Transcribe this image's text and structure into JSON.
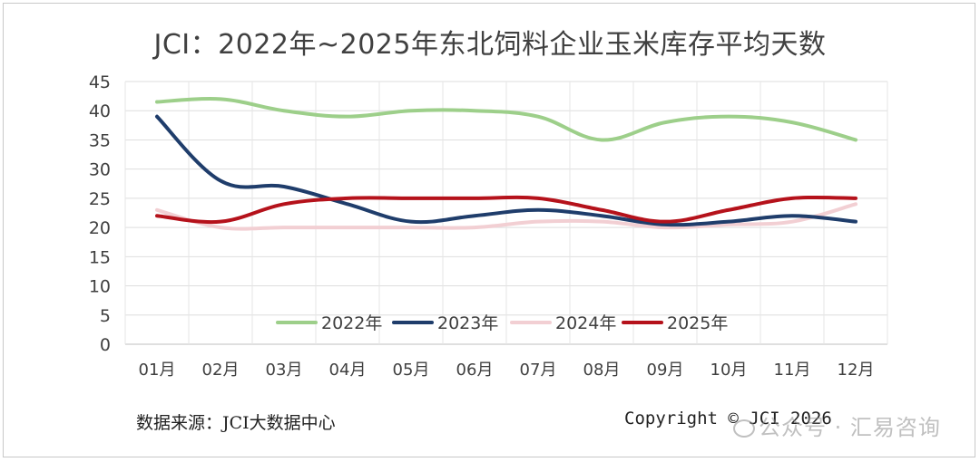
{
  "chart_data": {
    "type": "line",
    "title": "JCI：2022年~2025年东北饲料企业玉米库存平均天数",
    "categories": [
      "01月",
      "02月",
      "03月",
      "04月",
      "05月",
      "06月",
      "07月",
      "08月",
      "09月",
      "10月",
      "11月",
      "12月"
    ],
    "ylim": [
      0,
      45
    ],
    "yticks": [
      0,
      5,
      10,
      15,
      20,
      25,
      30,
      35,
      40,
      45
    ],
    "grid": true,
    "legend_position": "bottom-inside",
    "series": [
      {
        "name": "2022年",
        "color": "#9dcf8a",
        "values": [
          41.5,
          42,
          40,
          39,
          40,
          40,
          39,
          35,
          38,
          39,
          38,
          35
        ]
      },
      {
        "name": "2023年",
        "color": "#1f3d6b",
        "values": [
          39,
          28,
          27,
          24,
          21,
          22,
          23,
          22,
          20.5,
          21,
          22,
          21
        ]
      },
      {
        "name": "2024年",
        "color": "#f2cfd3",
        "values": [
          23,
          20,
          20,
          20,
          20,
          20,
          21,
          21,
          20,
          20.5,
          21,
          24
        ]
      },
      {
        "name": "2025年",
        "color": "#b5121b",
        "values": [
          22,
          21,
          24,
          25,
          25,
          25,
          25,
          23,
          21,
          23,
          25,
          25
        ]
      }
    ]
  },
  "footer": {
    "source": "数据来源：JCI大数据中心",
    "copyright": "Copyright © JCI 2026",
    "wechat": "公众号 · 汇易咨询"
  }
}
